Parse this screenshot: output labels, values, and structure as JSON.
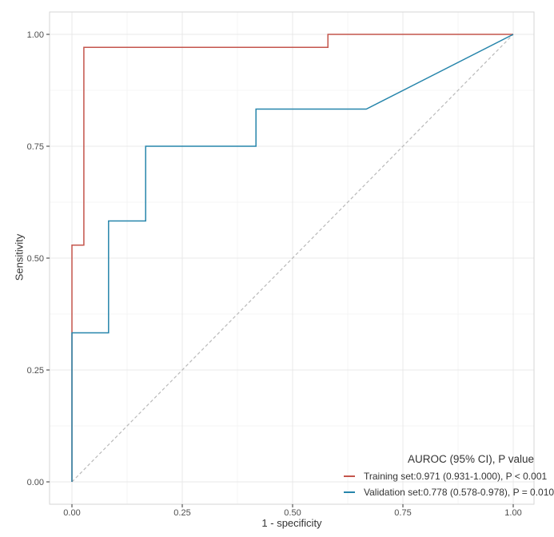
{
  "chart_data": {
    "type": "line",
    "subtype": "roc-curve",
    "title": "",
    "xlabel": "1 - specificity",
    "ylabel": "Sensitivity",
    "xlim": [
      0,
      1
    ],
    "ylim": [
      0,
      1
    ],
    "grid": true,
    "x_tick_values": [
      0,
      0.25,
      0.5,
      0.75,
      1
    ],
    "y_tick_values": [
      0,
      0.25,
      0.5,
      0.75,
      1
    ],
    "x_tick_labels": [
      "0.00",
      "0.25",
      "0.50",
      "0.75",
      "1.00"
    ],
    "y_tick_labels": [
      "0.00",
      "0.25",
      "0.50",
      "0.75",
      "1.00"
    ],
    "minor_tick_values": [
      0.125,
      0.375,
      0.625,
      0.875
    ],
    "series": [
      {
        "name": "Training set",
        "color": "#c4554c",
        "auroc": 0.971,
        "ci_95": "0.931-1.000",
        "p_value": "P < 0.001",
        "points": [
          [
            0,
            0
          ],
          [
            0,
            0.529
          ],
          [
            0.027,
            0.529
          ],
          [
            0.027,
            0.971
          ],
          [
            0.58,
            0.971
          ],
          [
            0.58,
            1.0
          ],
          [
            1.0,
            1.0
          ]
        ]
      },
      {
        "name": "Validation set",
        "color": "#2685ab",
        "auroc": 0.778,
        "ci_95": "0.578-0.978",
        "p_value": "P = 0.010",
        "points": [
          [
            0,
            0
          ],
          [
            0,
            0.333
          ],
          [
            0.083,
            0.333
          ],
          [
            0.083,
            0.583
          ],
          [
            0.167,
            0.583
          ],
          [
            0.167,
            0.75
          ],
          [
            0.417,
            0.75
          ],
          [
            0.417,
            0.833
          ],
          [
            0.667,
            0.833
          ],
          [
            1.0,
            1.0
          ]
        ]
      }
    ],
    "reference_line": {
      "name": "chance-diagonal",
      "style": "dashed",
      "color": "#b9b9b9",
      "points": [
        [
          0,
          0
        ],
        [
          1,
          1
        ]
      ]
    },
    "legend": {
      "position": "bottom-right",
      "title": "AUROC (95% CI), P value",
      "entries": [
        {
          "label": "Training set:",
          "value": "0.971 (0.931-1.000), P < 0.001",
          "color": "#c4554c"
        },
        {
          "label": "Validation set:",
          "value": "0.778 (0.578-0.978), P = 0.010",
          "color": "#2685ab"
        }
      ]
    },
    "colors": {
      "panel_background": "#ffffff",
      "panel_border": "#d6d6d6",
      "grid_major": "#e8e8e8",
      "grid_minor": "#f4f4f4",
      "tick_mark": "#333333",
      "tick_label": "#4d4d4d",
      "axis_title": "#333333"
    }
  }
}
